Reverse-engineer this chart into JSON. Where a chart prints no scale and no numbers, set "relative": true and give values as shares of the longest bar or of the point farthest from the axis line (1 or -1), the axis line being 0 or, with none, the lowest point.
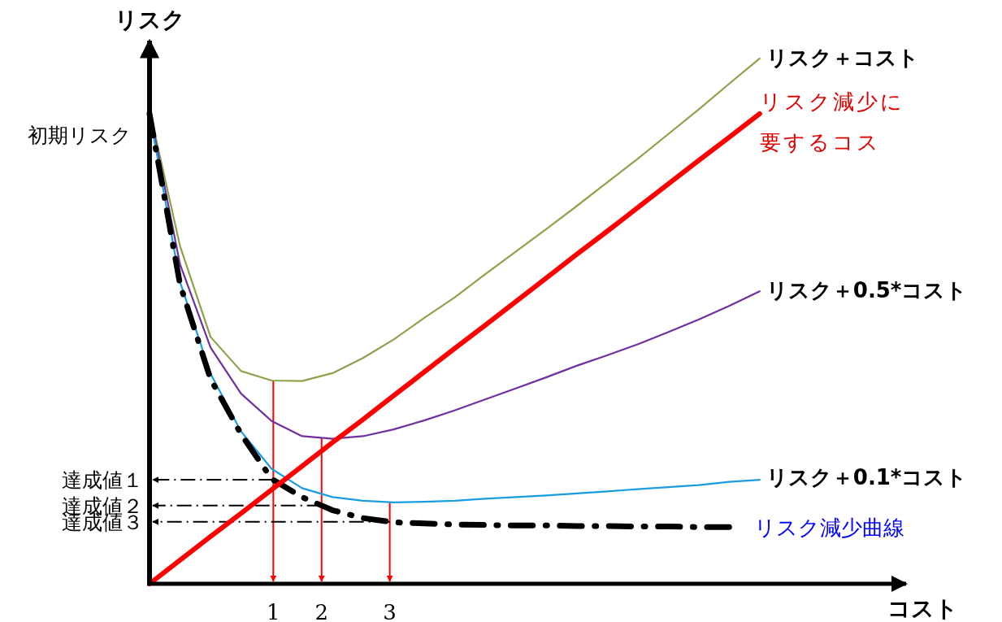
{
  "chart_data": {
    "type": "line",
    "relative": true,
    "xlabel": "コスト",
    "ylabel": "リスク",
    "categories": [
      null,
      null,
      null,
      null,
      null,
      null,
      null,
      null,
      null,
      null,
      null,
      null,
      null,
      null,
      null,
      null,
      null,
      null,
      null,
      null,
      null
    ],
    "annotations": [
      "初期リスク",
      "1",
      "2",
      "3"
    ],
    "series": [
      {
        "name": "リスク＋コスト",
        "color": "#8da24a",
        "values": [
          0.902,
          0.643,
          0.47,
          0.405,
          0.387,
          0.386,
          0.401,
          0.43,
          0.465,
          0.506,
          0.545,
          0.589,
          0.632,
          0.675,
          0.719,
          0.764,
          0.809,
          0.856,
          0.903,
          0.952,
          1
        ]
      },
      {
        "name": "リスク＋0.5*コスト",
        "color": "#7030a0",
        "values": [
          0.902,
          0.608,
          0.45,
          0.362,
          0.31,
          0.281,
          0.276,
          0.281,
          0.294,
          0.311,
          0.33,
          0.351,
          0.372,
          0.393,
          0.415,
          0.435,
          0.456,
          0.479,
          0.503,
          0.529,
          0.557
        ]
      },
      {
        "name": "リスク＋0.1*コスト",
        "color": "#1a9de0",
        "values": [
          0.895,
          0.575,
          0.4,
          0.29,
          0.219,
          0.182,
          0.165,
          0.158,
          0.155,
          0.156,
          0.158,
          0.162,
          0.165,
          0.168,
          0.172,
          0.176,
          0.18,
          0.184,
          0.188,
          0.194,
          0.198
        ]
      },
      {
        "name": "リスク減少曲線",
        "color": "#000000",
        "line_style": "dashed",
        "values": [
          0.895,
          0.57,
          0.39,
          0.285,
          0.2,
          0.165,
          0.14,
          0.125,
          0.117,
          0.115,
          0.113,
          0.112,
          0.111,
          0.111,
          0.11,
          0.11,
          0.109,
          0.109,
          0.108,
          0.108,
          null
        ]
      },
      {
        "name": "リスク減少に要するコス",
        "color": "#ff0000",
        "values": [
          0,
          0.045,
          0.09,
          0.134,
          0.179,
          0.224,
          0.269,
          0.313,
          0.358,
          0.403,
          0.448,
          0.492,
          0.537,
          0.582,
          0.627,
          0.671,
          0.716,
          0.761,
          0.806,
          0.85,
          0.895
        ]
      }
    ],
    "ref_lines": [
      {
        "axis": "y",
        "value": 0.198,
        "label": "達成値１",
        "line_style": "dashed"
      },
      {
        "axis": "y",
        "value": 0.149,
        "label": "達成値２",
        "line_style": "dashed"
      },
      {
        "axis": "y",
        "value": 0.118,
        "label": "達成値３",
        "line_style": "dashed"
      }
    ]
  }
}
